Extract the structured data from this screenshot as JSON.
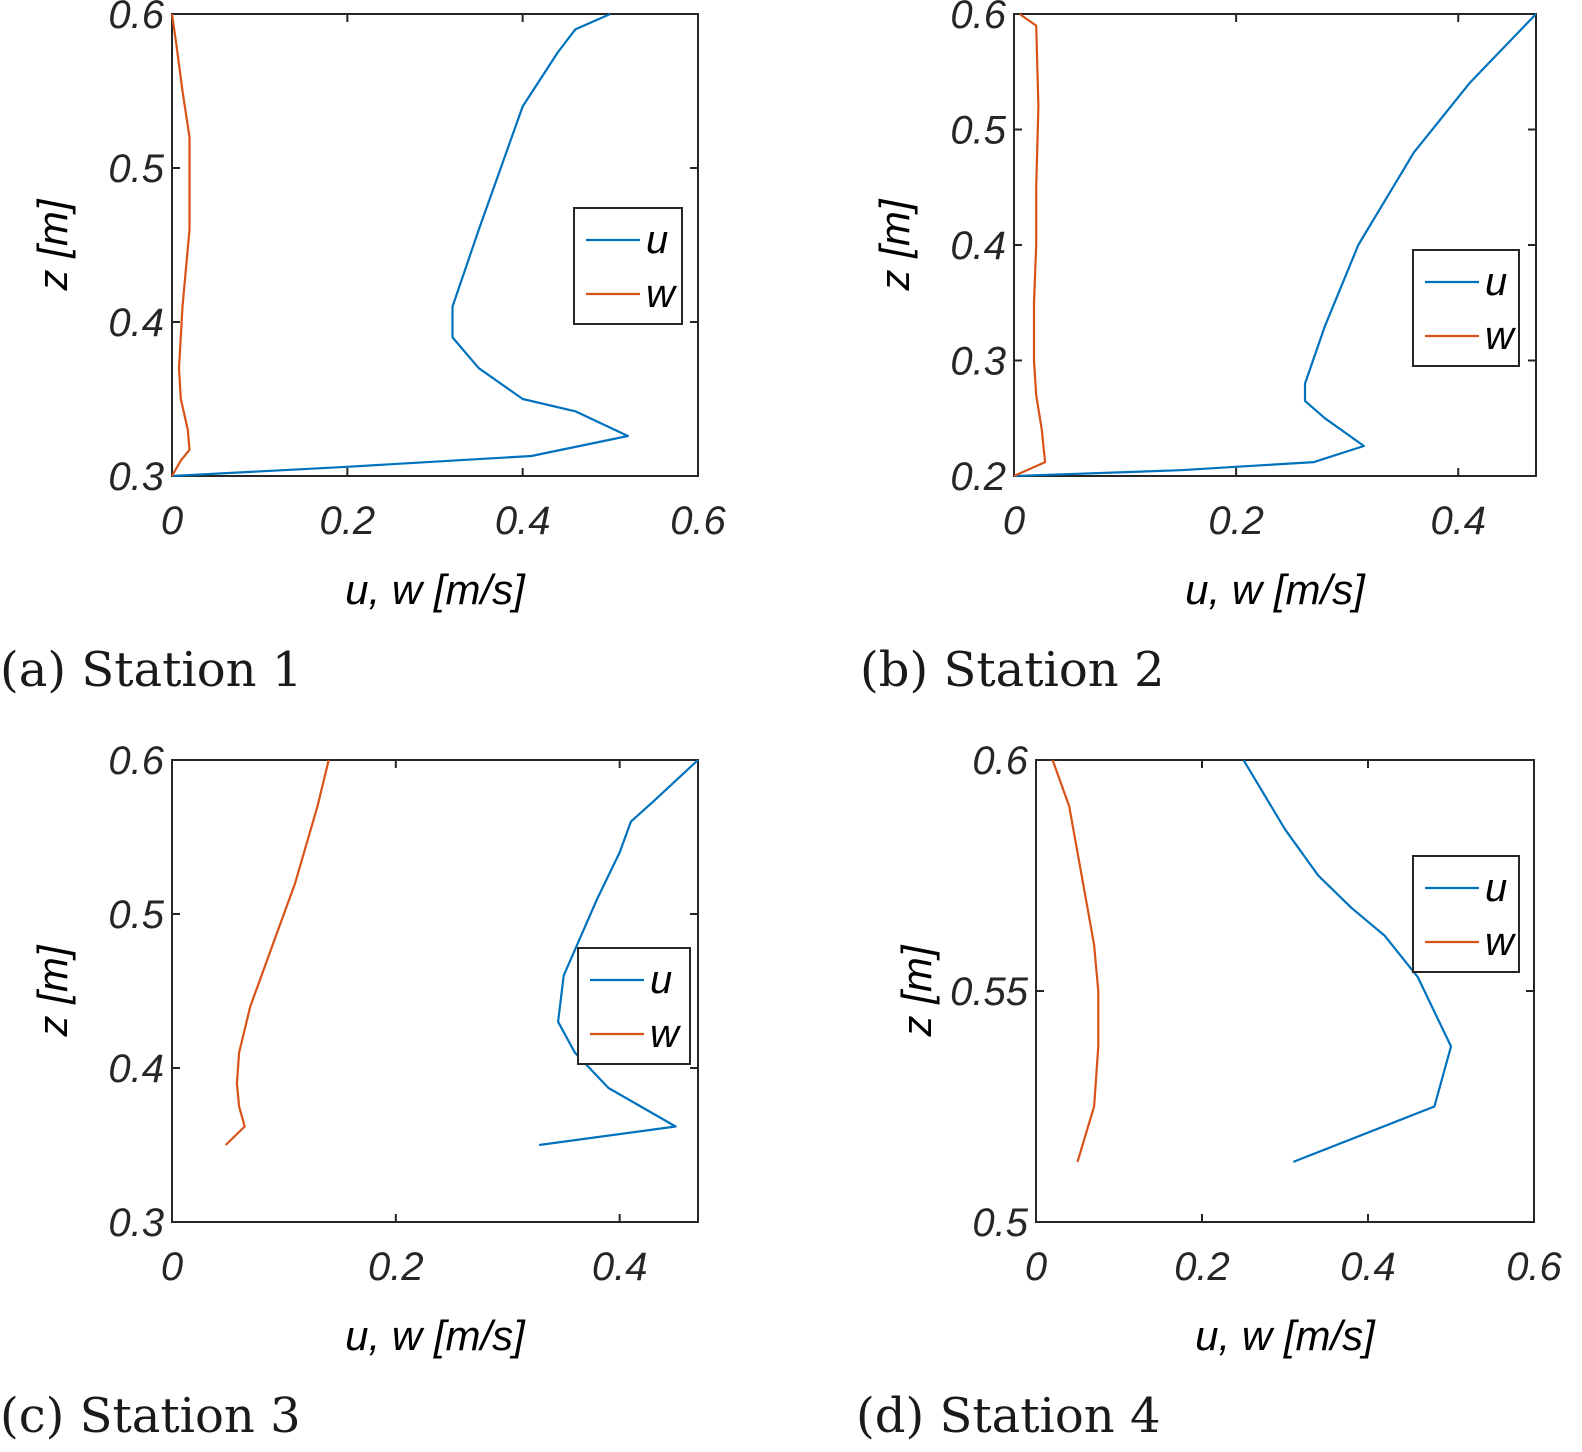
{
  "figure": {
    "colors": {
      "u": "#0072BD",
      "w": "#D95319",
      "axis": "#262626"
    }
  },
  "chart_data": [
    {
      "type": "line",
      "caption": "(a) Station 1",
      "xlabel": "u, w [m/s]",
      "ylabel": "z [m]",
      "xlim": [
        0,
        0.6
      ],
      "ylim": [
        0.3,
        0.6
      ],
      "xticks": [
        0,
        0.2,
        0.4,
        0.6
      ],
      "xtick_labels": [
        "0",
        "0.2",
        "0.4",
        "0.6"
      ],
      "yticks": [
        0.3,
        0.4,
        0.5,
        0.6
      ],
      "ytick_labels": [
        "0.3",
        "0.4",
        "0.5",
        "0.6"
      ],
      "legend": [
        "u",
        "w"
      ],
      "legend_position": "center-right",
      "series": [
        {
          "name": "u",
          "x": [
            0,
            0.2,
            0.41,
            0.52,
            0.46,
            0.4,
            0.35,
            0.32,
            0.32,
            0.35,
            0.4,
            0.44,
            0.46,
            0.5
          ],
          "y": [
            0.3,
            0.306,
            0.313,
            0.326,
            0.342,
            0.35,
            0.37,
            0.39,
            0.41,
            0.46,
            0.54,
            0.575,
            0.59,
            0.6
          ]
        },
        {
          "name": "w",
          "x": [
            0,
            0.01,
            0.02,
            0.018,
            0.01,
            0.008,
            0.012,
            0.02,
            0.02,
            0.012,
            0.005,
            0
          ],
          "y": [
            0.3,
            0.31,
            0.317,
            0.33,
            0.35,
            0.37,
            0.41,
            0.46,
            0.52,
            0.55,
            0.58,
            0.6
          ]
        }
      ]
    },
    {
      "type": "line",
      "caption": "(b) Station 2",
      "xlabel": "u, w [m/s]",
      "ylabel": "z [m]",
      "xlim": [
        0,
        0.47
      ],
      "ylim": [
        0.2,
        0.6
      ],
      "xticks": [
        0,
        0.2,
        0.4
      ],
      "xtick_labels": [
        "0",
        "0.2",
        "0.4"
      ],
      "yticks": [
        0.2,
        0.3,
        0.4,
        0.5,
        0.6
      ],
      "ytick_labels": [
        "0.2",
        "0.3",
        "0.4",
        "0.5",
        "0.6"
      ],
      "legend": [
        "u",
        "w"
      ],
      "legend_position": "center-right",
      "series": [
        {
          "name": "u",
          "x": [
            0,
            0.15,
            0.27,
            0.315,
            0.28,
            0.262,
            0.262,
            0.28,
            0.31,
            0.36,
            0.41,
            0.47
          ],
          "y": [
            0.2,
            0.205,
            0.212,
            0.226,
            0.25,
            0.265,
            0.28,
            0.33,
            0.4,
            0.48,
            0.54,
            0.6
          ]
        },
        {
          "name": "w",
          "x": [
            0,
            0.028,
            0.025,
            0.02,
            0.018,
            0.018,
            0.02,
            0.02,
            0.022,
            0.02,
            0.005
          ],
          "y": [
            0.2,
            0.212,
            0.24,
            0.27,
            0.3,
            0.35,
            0.4,
            0.45,
            0.52,
            0.59,
            0.6
          ]
        }
      ]
    },
    {
      "type": "line",
      "caption": "(c) Station 3",
      "xlabel": "u, w [m/s]",
      "ylabel": "z [m]",
      "xlim": [
        0,
        0.47
      ],
      "ylim": [
        0.3,
        0.6
      ],
      "xticks": [
        0,
        0.2,
        0.4
      ],
      "xtick_labels": [
        "0",
        "0.2",
        "0.4"
      ],
      "yticks": [
        0.3,
        0.4,
        0.5,
        0.6
      ],
      "ytick_labels": [
        "0.3",
        "0.4",
        "0.5",
        "0.6"
      ],
      "legend": [
        "u",
        "w"
      ],
      "legend_position": "center-right",
      "series": [
        {
          "name": "u",
          "x": [
            0.328,
            0.45,
            0.39,
            0.36,
            0.345,
            0.35,
            0.38,
            0.4,
            0.41,
            0.43,
            0.47
          ],
          "y": [
            0.35,
            0.362,
            0.387,
            0.41,
            0.43,
            0.46,
            0.51,
            0.54,
            0.56,
            0.573,
            0.6
          ]
        },
        {
          "name": "w",
          "x": [
            0.048,
            0.065,
            0.06,
            0.058,
            0.06,
            0.07,
            0.09,
            0.11,
            0.13,
            0.14
          ],
          "y": [
            0.35,
            0.362,
            0.375,
            0.39,
            0.41,
            0.44,
            0.48,
            0.52,
            0.57,
            0.6
          ]
        }
      ]
    },
    {
      "type": "line",
      "caption": "(d) Station 4",
      "xlabel": "u, w [m/s]",
      "ylabel": "z [m]",
      "xlim": [
        0,
        0.6
      ],
      "ylim": [
        0.5,
        0.6
      ],
      "xticks": [
        0,
        0.2,
        0.4,
        0.6
      ],
      "xtick_labels": [
        "0",
        "0.2",
        "0.4",
        "0.6"
      ],
      "yticks": [
        0.5,
        0.55,
        0.6
      ],
      "ytick_labels": [
        "0.5",
        "0.55",
        "0.6"
      ],
      "legend": [
        "u",
        "w"
      ],
      "legend_position": "top-right",
      "series": [
        {
          "name": "u",
          "x": [
            0.31,
            0.48,
            0.5,
            0.46,
            0.42,
            0.38,
            0.34,
            0.3,
            0.25
          ],
          "y": [
            0.513,
            0.525,
            0.538,
            0.553,
            0.562,
            0.568,
            0.575,
            0.585,
            0.6
          ]
        },
        {
          "name": "w",
          "x": [
            0.05,
            0.07,
            0.075,
            0.075,
            0.07,
            0.06,
            0.05,
            0.04,
            0.02
          ],
          "y": [
            0.513,
            0.525,
            0.538,
            0.55,
            0.56,
            0.57,
            0.58,
            0.59,
            0.6
          ]
        }
      ]
    }
  ]
}
